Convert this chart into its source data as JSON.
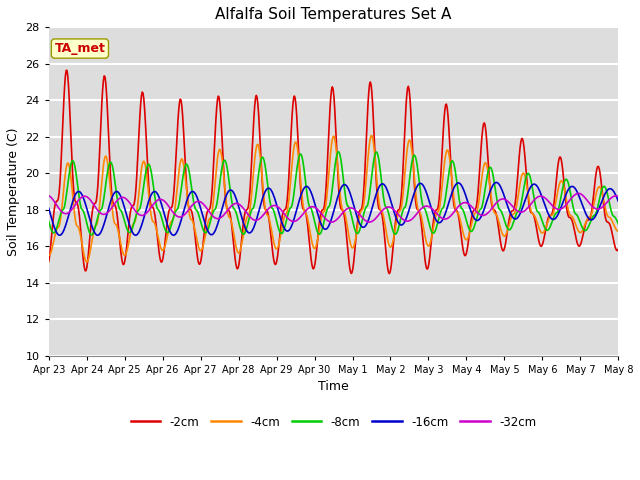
{
  "title": "Alfalfa Soil Temperatures Set A",
  "xlabel": "Time",
  "ylabel": "Soil Temperature (C)",
  "ylim": [
    10,
    28
  ],
  "background_color": "#ffffff",
  "plot_bg_color": "#dddddd",
  "grid_color": "#ffffff",
  "series": [
    {
      "label": "-2cm",
      "color": "#dd0000",
      "lw": 1.2
    },
    {
      "label": "-4cm",
      "color": "#ff8800",
      "lw": 1.2
    },
    {
      "label": "-8cm",
      "color": "#00cc00",
      "lw": 1.2
    },
    {
      "label": "-16cm",
      "color": "#0000cc",
      "lw": 1.2
    },
    {
      "label": "-32cm",
      "color": "#cc00cc",
      "lw": 1.2
    }
  ],
  "annotation": {
    "text": "TA_met",
    "fontsize": 9,
    "color": "#cc0000",
    "bg": "#ffffcc",
    "edgecolor": "#999900"
  },
  "xtick_labels": [
    "Apr 23",
    "Apr 24",
    "Apr 25",
    "Apr 26",
    "Apr 27",
    "Apr 28",
    "Apr 29",
    "Apr 30",
    "May 1",
    "May 2",
    "May 3",
    "May 4",
    "May 5",
    "May 6",
    "May 7",
    "May 8"
  ],
  "ytick_positions": [
    10,
    12,
    14,
    16,
    18,
    20,
    22,
    24,
    26,
    28
  ]
}
